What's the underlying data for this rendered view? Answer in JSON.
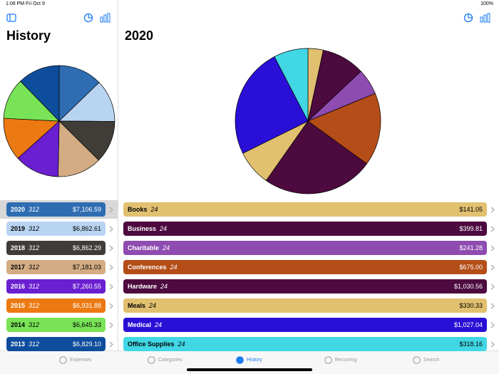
{
  "status_bar": {
    "time": "1:08 PM",
    "date": "Fri Oct 9",
    "battery": "100%"
  },
  "sidebar": {
    "title": "History",
    "type": "pie",
    "categories": [
      "2020",
      "2019",
      "2018",
      "2017",
      "2016",
      "2015",
      "2014",
      "2013"
    ],
    "counts": [
      312,
      312,
      312,
      312,
      312,
      312,
      312,
      312
    ],
    "values": [
      7106.59,
      6862.61,
      6862.29,
      7181.03,
      7260.55,
      6931.88,
      6645.33,
      6829.1
    ],
    "value_labels": [
      "$7,106.59",
      "$6,862.61",
      "$6,862.29",
      "$7,181.03",
      "$7,260.55",
      "$6,931.88",
      "$6,645.33",
      "$6,829.10"
    ],
    "colors": [
      "#2f6db3",
      "#b9d4f1",
      "#403d39",
      "#d4ac83",
      "#6a1fd0",
      "#ec7a12",
      "#78e356",
      "#0e4d9c"
    ]
  },
  "detail": {
    "title": "2020",
    "type": "pie",
    "categories": [
      "Books",
      "Business",
      "Charitable",
      "Conferences",
      "Hardware",
      "Meals",
      "Medical",
      "Office Supplies"
    ],
    "counts": [
      24,
      24,
      24,
      24,
      24,
      24,
      24,
      24
    ],
    "values": [
      141.05,
      399.81,
      241.28,
      675.0,
      1030.56,
      330.33,
      1027.04,
      318.16
    ],
    "value_labels": [
      "$141.05",
      "$399.81",
      "$241.28",
      "$675.00",
      "$1,030.56",
      "$330.33",
      "$1,027.04",
      "$318.16"
    ],
    "colors": [
      "#e1c070",
      "#4d0a3f",
      "#8e4bb0",
      "#b44d17",
      "#4d0a3f",
      "#e1c070",
      "#2a10d6",
      "#41d7e5"
    ]
  },
  "tab_bar": {
    "tabs": [
      "Expenses",
      "Categories",
      "History",
      "Recurring",
      "Search"
    ],
    "active_tab": 2
  }
}
